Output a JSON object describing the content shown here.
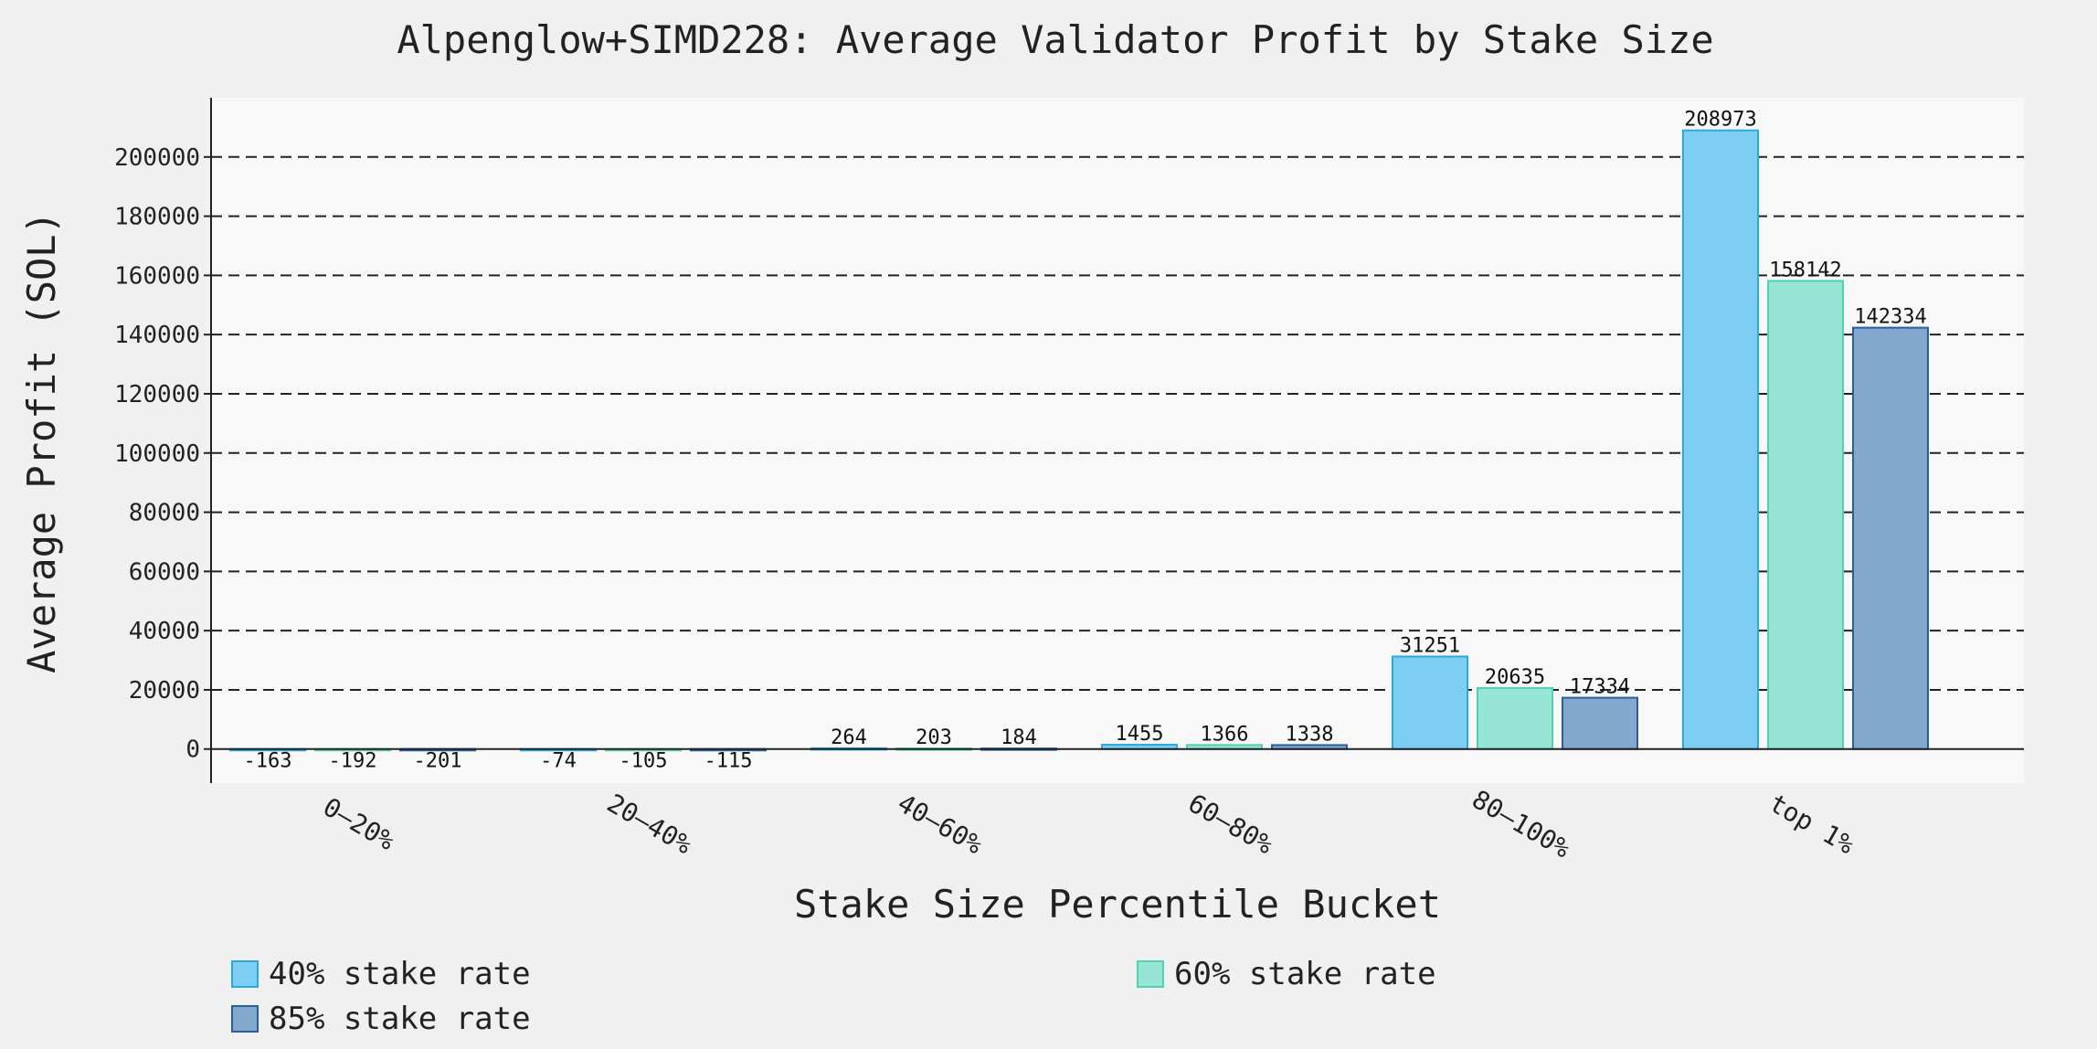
{
  "chart_data": {
    "type": "bar",
    "title": "Alpenglow+SIMD228: Average Validator Profit by Stake Size",
    "xlabel": "Stake Size Percentile Bucket",
    "ylabel": "Average Profit (SOL)",
    "categories": [
      "0–20%",
      "20–40%",
      "40–60%",
      "60–80%",
      "80–100%",
      "top 1%"
    ],
    "series": [
      {
        "name": "40% stake rate",
        "values": [
          -163,
          -74,
          264,
          1455,
          31251,
          208973
        ],
        "color": "#7ccff2",
        "edge": "#29a9e0"
      },
      {
        "name": "60% stake rate",
        "values": [
          -192,
          -105,
          203,
          1366,
          20635,
          158142
        ],
        "color": "#96e5d5",
        "edge": "#52d1b1"
      },
      {
        "name": "85% stake rate",
        "values": [
          -201,
          -115,
          184,
          1338,
          17334,
          142334
        ],
        "color": "#82a8cd",
        "edge": "#2a5f9e"
      }
    ],
    "ylim": [
      -11500,
      220000
    ],
    "yticks": [
      0,
      20000,
      40000,
      60000,
      80000,
      100000,
      120000,
      140000,
      160000,
      180000,
      200000
    ],
    "grid": true,
    "legend_position": "bottom"
  }
}
